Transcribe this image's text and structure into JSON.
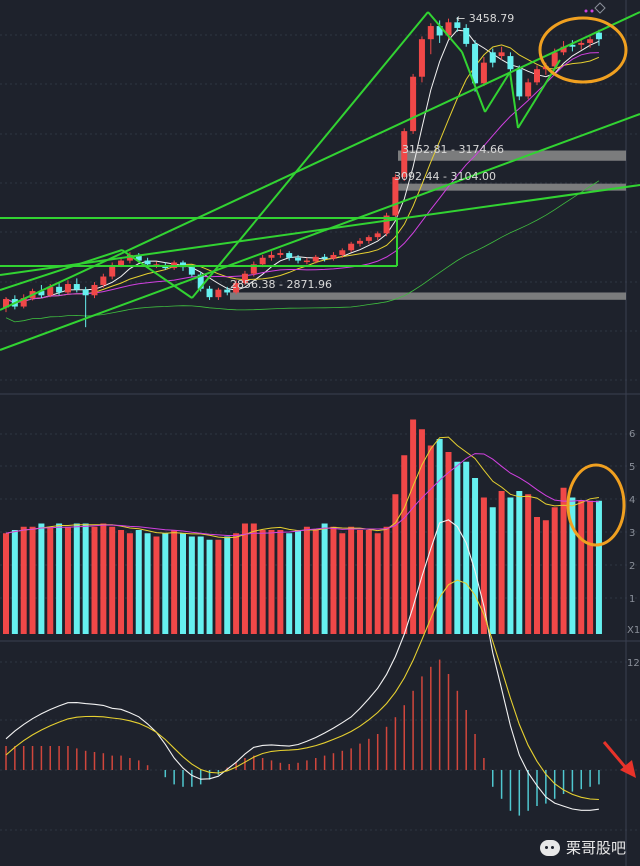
{
  "chart_data": {
    "type": "candlestick",
    "panels": [
      "price",
      "volume",
      "macd"
    ],
    "price": {
      "annotations": {
        "peak": "3458.79",
        "zone_upper": "3152.81 - 3174.66",
        "zone_middle": "3092.44 - 3104.00",
        "zone_lower": "2856.38 - 2871.96"
      },
      "candles": [
        [
          2840,
          2858,
          2830,
          2862,
          1
        ],
        [
          2858,
          2842,
          2836,
          2866,
          0
        ],
        [
          2842,
          2860,
          2838,
          2868,
          1
        ],
        [
          2860,
          2875,
          2855,
          2880,
          1
        ],
        [
          2875,
          2866,
          2860,
          2888,
          0
        ],
        [
          2866,
          2884,
          2862,
          2890,
          1
        ],
        [
          2884,
          2872,
          2866,
          2892,
          0
        ],
        [
          2872,
          2890,
          2868,
          2898,
          1
        ],
        [
          2890,
          2878,
          2872,
          2902,
          0
        ],
        [
          2878,
          2866,
          2798,
          2884,
          0
        ],
        [
          2866,
          2888,
          2860,
          2894,
          1
        ],
        [
          2888,
          2906,
          2882,
          2912,
          1
        ],
        [
          2906,
          2930,
          2900,
          2936,
          1
        ],
        [
          2930,
          2940,
          2926,
          2946,
          1
        ],
        [
          2940,
          2952,
          2934,
          2958,
          1
        ],
        [
          2952,
          2940,
          2936,
          2956,
          0
        ],
        [
          2940,
          2932,
          2928,
          2946,
          0
        ],
        [
          2932,
          2930,
          2924,
          2938,
          1
        ],
        [
          2930,
          2924,
          2920,
          2936,
          0
        ],
        [
          2924,
          2936,
          2920,
          2940,
          1
        ],
        [
          2936,
          2926,
          2918,
          2940,
          0
        ],
        [
          2926,
          2910,
          2906,
          2930,
          0
        ],
        [
          2910,
          2880,
          2874,
          2916,
          0
        ],
        [
          2880,
          2862,
          2856,
          2886,
          0
        ],
        [
          2862,
          2878,
          2856,
          2882,
          1
        ],
        [
          2878,
          2872,
          2866,
          2884,
          0
        ],
        [
          2872,
          2892,
          2868,
          2898,
          1
        ],
        [
          2892,
          2912,
          2888,
          2918,
          1
        ],
        [
          2912,
          2932,
          2906,
          2938,
          1
        ],
        [
          2932,
          2946,
          2926,
          2952,
          1
        ],
        [
          2946,
          2952,
          2940,
          2960,
          1
        ],
        [
          2952,
          2956,
          2946,
          2964,
          1
        ],
        [
          2956,
          2946,
          2940,
          2960,
          0
        ],
        [
          2946,
          2940,
          2934,
          2952,
          0
        ],
        [
          2940,
          2938,
          2932,
          2946,
          1
        ],
        [
          2938,
          2948,
          2934,
          2952,
          1
        ],
        [
          2948,
          2944,
          2938,
          2954,
          0
        ],
        [
          2944,
          2952,
          2940,
          2958,
          1
        ],
        [
          2952,
          2962,
          2946,
          2966,
          1
        ],
        [
          2962,
          2976,
          2958,
          2980,
          1
        ],
        [
          2976,
          2982,
          2970,
          2988,
          1
        ],
        [
          2982,
          2990,
          2976,
          2994,
          1
        ],
        [
          2990,
          2998,
          2984,
          3002,
          1
        ],
        [
          2998,
          3036,
          2992,
          3042,
          1
        ],
        [
          3036,
          3118,
          3030,
          3124,
          1
        ],
        [
          3118,
          3216,
          3110,
          3222,
          1
        ],
        [
          3216,
          3332,
          3210,
          3338,
          1
        ],
        [
          3332,
          3412,
          3320,
          3418,
          1
        ],
        [
          3412,
          3440,
          3380,
          3446,
          1
        ],
        [
          3440,
          3420,
          3404,
          3452,
          0
        ],
        [
          3420,
          3448,
          3412,
          3456,
          1
        ],
        [
          3448,
          3436,
          3428,
          3459,
          0
        ],
        [
          3436,
          3402,
          3396,
          3444,
          0
        ],
        [
          3402,
          3318,
          3300,
          3410,
          0
        ],
        [
          3318,
          3362,
          3312,
          3374,
          1
        ],
        [
          3362,
          3384,
          3352,
          3392,
          0
        ],
        [
          3384,
          3376,
          3368,
          3396,
          1
        ],
        [
          3376,
          3348,
          3330,
          3384,
          0
        ],
        [
          3348,
          3290,
          3282,
          3356,
          0
        ],
        [
          3290,
          3320,
          3284,
          3328,
          1
        ],
        [
          3320,
          3348,
          3314,
          3356,
          1
        ],
        [
          3348,
          3354,
          3336,
          3362,
          1
        ],
        [
          3354,
          3384,
          3346,
          3392,
          1
        ],
        [
          3384,
          3396,
          3378,
          3408,
          1
        ],
        [
          3396,
          3400,
          3386,
          3410,
          0
        ],
        [
          3400,
          3404,
          3390,
          3412,
          1
        ],
        [
          3404,
          3412,
          3394,
          3418,
          1
        ],
        [
          3412,
          3426,
          3398,
          3432,
          0
        ]
      ]
    },
    "volume": {
      "axis_ticks": [
        "6",
        "5",
        "4",
        "3",
        "2",
        "1"
      ],
      "axis_unit": "X1",
      "values": [
        3.1,
        3.2,
        3.3,
        3.3,
        3.4,
        3.3,
        3.4,
        3.3,
        3.4,
        3.4,
        3.3,
        3.4,
        3.3,
        3.2,
        3.1,
        3.2,
        3.1,
        3.0,
        3.1,
        3.2,
        3.1,
        3.0,
        3.0,
        2.9,
        2.9,
        3.0,
        3.1,
        3.4,
        3.4,
        3.2,
        3.2,
        3.2,
        3.1,
        3.2,
        3.3,
        3.2,
        3.4,
        3.3,
        3.1,
        3.3,
        3.2,
        3.2,
        3.1,
        3.3,
        4.3,
        5.5,
        6.6,
        6.3,
        5.8,
        6.0,
        5.6,
        5.3,
        5.3,
        4.8,
        4.2,
        3.9,
        4.4,
        4.2,
        4.4,
        4.3,
        3.6,
        3.5,
        3.9,
        4.5,
        4.2,
        4.1,
        4.1,
        4.1
      ]
    },
    "macd": {
      "axis_ticks": [
        "12"
      ],
      "hist": [
        2,
        2,
        2,
        2,
        2,
        2,
        2,
        2,
        1.8,
        1.6,
        1.5,
        1.4,
        1.2,
        1.2,
        1,
        0.8,
        0.4,
        0,
        -0.6,
        -1.2,
        -1.4,
        -1.4,
        -1.2,
        -0.8,
        -0.4,
        0.2,
        0.6,
        1,
        1.2,
        1,
        0.8,
        0.6,
        0.5,
        0.6,
        0.8,
        1,
        1.2,
        1.4,
        1.6,
        1.8,
        2.2,
        2.6,
        3,
        3.6,
        4.4,
        5.4,
        6.6,
        7.8,
        8.6,
        9.2,
        8,
        6.6,
        5,
        3,
        1,
        -1.4,
        -2.4,
        -3.4,
        -3.8,
        -3.4,
        -3,
        -2.8,
        -2.4,
        -2,
        -1.8,
        -1.6,
        -1.4,
        -1.2
      ]
    },
    "watermark": "栗哥股吧"
  }
}
